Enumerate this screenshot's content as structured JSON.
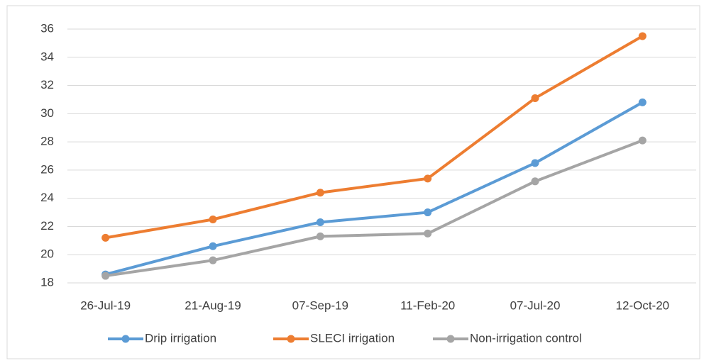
{
  "chart_data": {
    "type": "line",
    "categories": [
      "26-Jul-19",
      "21-Aug-19",
      "07-Sep-19",
      "11-Feb-20",
      "07-Jul-20",
      "12-Oct-20"
    ],
    "series": [
      {
        "name": "Drip irrigation",
        "color": "#5b9bd5",
        "values": [
          18.6,
          20.6,
          22.3,
          23.0,
          26.5,
          30.8
        ]
      },
      {
        "name": "SLECI irrigation",
        "color": "#ed7d31",
        "values": [
          21.2,
          22.5,
          24.4,
          25.4,
          31.1,
          35.5
        ]
      },
      {
        "name": "Non-irrigation control",
        "color": "#a5a5a5",
        "values": [
          18.5,
          19.6,
          21.3,
          21.5,
          25.2,
          28.1
        ]
      }
    ],
    "ylim": [
      18,
      36
    ],
    "yticks": [
      18,
      20,
      22,
      24,
      26,
      28,
      30,
      32,
      34,
      36
    ],
    "grid": true,
    "legend": "bottom"
  }
}
